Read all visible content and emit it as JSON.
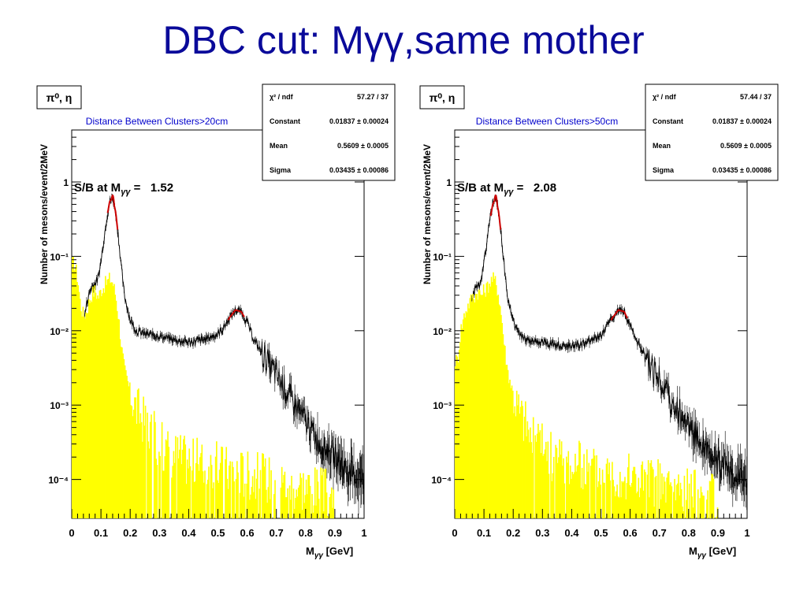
{
  "slide": {
    "title": "DBC cut: Mγγ,same mother"
  },
  "colors": {
    "title": "#0a0a9a",
    "signal_hist": "#ffff00",
    "data_points": "#000000",
    "fit": "#cc0000",
    "cut_label": "#0000cc"
  },
  "chart_data": [
    {
      "type": "histogram",
      "particle_label": "π⁰, η",
      "cut_label": "Distance Between Clusters>20cm",
      "sb_prefix": "S/B at M",
      "sb_sub": "γγ",
      "sb_eq": " =   ",
      "sb_value": "1.52",
      "ylabel": "Number of mesons/event/2MeV",
      "xlabel_main": "M",
      "xlabel_sub": "γγ",
      "xlabel_unit": " [GeV]",
      "x_range": [
        0,
        1
      ],
      "y_scale": "log",
      "y_range": [
        3e-05,
        5
      ],
      "x_ticks": [
        "0",
        "0.1",
        "0.2",
        "0.3",
        "0.4",
        "0.5",
        "0.6",
        "0.7",
        "0.8",
        "0.9",
        "1"
      ],
      "y_ticks": [
        {
          "value": 1,
          "label": "1"
        },
        {
          "value": 0.1,
          "label": "10⁻¹"
        },
        {
          "value": 0.01,
          "label": "10⁻²"
        },
        {
          "value": 0.001,
          "label": "10⁻³"
        },
        {
          "value": 0.0001,
          "label": "10⁻⁴"
        }
      ],
      "stats": [
        {
          "name": "χ² / ndf",
          "value": "57.27 / 37"
        },
        {
          "name": "Constant",
          "value": "0.01837 ± 0.00024"
        },
        {
          "name": "Mean",
          "value": "0.5609 ± 0.0005"
        },
        {
          "name": "Sigma",
          "value": "0.03435 ± 0.00086"
        }
      ],
      "series": [
        {
          "kind": "background",
          "x": [
            0.01,
            0.02,
            0.03,
            0.04,
            0.05,
            0.06,
            0.07,
            0.08,
            0.09,
            0.1,
            0.11,
            0.12,
            0.13,
            0.14,
            0.15,
            0.16,
            0.17,
            0.18,
            0.2,
            0.22,
            0.25,
            0.3,
            0.35,
            0.4,
            0.45,
            0.5,
            0.52,
            0.54,
            0.56,
            0.58,
            0.6,
            0.62,
            0.65,
            0.7,
            0.75,
            0.8,
            0.85,
            0.9,
            0.95,
            1.0
          ],
          "y": [
            0.0003,
            0.0015,
            0.005,
            0.012,
            0.022,
            0.032,
            0.04,
            0.043,
            0.05,
            0.085,
            0.17,
            0.33,
            0.55,
            0.6,
            0.4,
            0.18,
            0.07,
            0.03,
            0.014,
            0.01,
            0.009,
            0.0085,
            0.0075,
            0.007,
            0.0075,
            0.009,
            0.011,
            0.015,
            0.019,
            0.018,
            0.013,
            0.008,
            0.005,
            0.0025,
            0.0012,
            0.0006,
            0.0003,
            0.0002,
            0.00012,
            0.0001
          ]
        },
        {
          "kind": "signal",
          "x": [
            0.01,
            0.02,
            0.03,
            0.04,
            0.05,
            0.06,
            0.07,
            0.08,
            0.09,
            0.1,
            0.11,
            0.12,
            0.13,
            0.14,
            0.15,
            0.16,
            0.17,
            0.18,
            0.2,
            0.22,
            0.25,
            0.28,
            0.32,
            0.4,
            0.5,
            0.6,
            0.7,
            0.8,
            0.9
          ],
          "y": [
            0.08,
            0.05,
            0.022,
            0.016,
            0.018,
            0.025,
            0.032,
            0.035,
            0.028,
            0.035,
            0.04,
            0.045,
            0.05,
            0.045,
            0.03,
            0.015,
            0.006,
            0.003,
            0.0015,
            0.0009,
            0.0006,
            0.0004,
            0.00025,
            0.00018,
            0.00015,
            0.00012,
            0.0001,
            8e-05,
            6e-05
          ]
        },
        {
          "kind": "fit",
          "peaks": [
            {
              "center": 0.14,
              "amp": 0.6,
              "sigma": 0.007,
              "x_min": 0.123,
              "x_max": 0.157
            },
            {
              "center": 0.5609,
              "amp": 0.01837,
              "sigma": 0.03435,
              "x_min": 0.535,
              "x_max": 0.59,
              "base": 0.0
            }
          ]
        }
      ]
    },
    {
      "type": "histogram",
      "particle_label": "π⁰, η",
      "cut_label": "Distance Between Clusters>50cm",
      "sb_prefix": "S/B at M",
      "sb_sub": "γγ",
      "sb_eq": " =   ",
      "sb_value": "2.08",
      "ylabel": "Number of mesons/event/2MeV",
      "xlabel_main": "M",
      "xlabel_sub": "γγ",
      "xlabel_unit": " [GeV]",
      "x_range": [
        0,
        1
      ],
      "y_scale": "log",
      "y_range": [
        3e-05,
        5
      ],
      "x_ticks": [
        "0",
        "0.1",
        "0.2",
        "0.3",
        "0.4",
        "0.5",
        "0.6",
        "0.7",
        "0.8",
        "0.9",
        "1"
      ],
      "y_ticks": [
        {
          "value": 1,
          "label": "1"
        },
        {
          "value": 0.1,
          "label": "10⁻¹"
        },
        {
          "value": 0.01,
          "label": "10⁻²"
        },
        {
          "value": 0.001,
          "label": "10⁻³"
        },
        {
          "value": 0.0001,
          "label": "10⁻⁴"
        }
      ],
      "stats": [
        {
          "name": "χ² / ndf",
          "value": "57.44 / 37"
        },
        {
          "name": "Constant",
          "value": "0.01837 ± 0.00024"
        },
        {
          "name": "Mean",
          "value": "0.5609 ± 0.0005"
        },
        {
          "name": "Sigma",
          "value": "0.03435 ± 0.00086"
        }
      ],
      "series": [
        {
          "kind": "background",
          "x": [
            0.01,
            0.02,
            0.03,
            0.04,
            0.05,
            0.06,
            0.07,
            0.08,
            0.09,
            0.1,
            0.11,
            0.12,
            0.13,
            0.14,
            0.15,
            0.16,
            0.17,
            0.18,
            0.2,
            0.22,
            0.25,
            0.3,
            0.35,
            0.4,
            0.45,
            0.5,
            0.52,
            0.54,
            0.56,
            0.58,
            0.6,
            0.62,
            0.65,
            0.7,
            0.75,
            0.8,
            0.85,
            0.9,
            0.95,
            1.0
          ],
          "y": [
            0.0003,
            0.0012,
            0.004,
            0.009,
            0.018,
            0.028,
            0.036,
            0.04,
            0.045,
            0.08,
            0.16,
            0.3,
            0.5,
            0.6,
            0.4,
            0.18,
            0.07,
            0.03,
            0.013,
            0.009,
            0.0075,
            0.007,
            0.0065,
            0.0062,
            0.0068,
            0.0085,
            0.011,
            0.015,
            0.019,
            0.018,
            0.012,
            0.0075,
            0.0045,
            0.0022,
            0.001,
            0.0005,
            0.0003,
            0.00018,
            0.00012,
            0.0001
          ]
        },
        {
          "kind": "signal",
          "x": [
            0.01,
            0.02,
            0.03,
            0.04,
            0.05,
            0.06,
            0.07,
            0.08,
            0.09,
            0.1,
            0.11,
            0.12,
            0.13,
            0.14,
            0.15,
            0.16,
            0.17,
            0.18,
            0.2,
            0.22,
            0.25,
            0.28,
            0.32,
            0.4,
            0.5,
            0.6,
            0.7,
            0.8,
            0.9
          ],
          "y": [
            0.004,
            0.01,
            0.015,
            0.02,
            0.024,
            0.028,
            0.03,
            0.034,
            0.03,
            0.034,
            0.038,
            0.045,
            0.05,
            0.045,
            0.03,
            0.015,
            0.006,
            0.003,
            0.0014,
            0.0008,
            0.0005,
            0.00035,
            0.00022,
            0.00016,
            0.00013,
            0.00011,
            9e-05,
            7e-05,
            5e-05
          ]
        },
        {
          "kind": "fit",
          "peaks": [
            {
              "center": 0.14,
              "amp": 0.6,
              "sigma": 0.007,
              "x_min": 0.123,
              "x_max": 0.157
            },
            {
              "center": 0.5609,
              "amp": 0.01837,
              "sigma": 0.03435,
              "x_min": 0.535,
              "x_max": 0.59,
              "base": 0.0
            }
          ]
        }
      ]
    }
  ]
}
